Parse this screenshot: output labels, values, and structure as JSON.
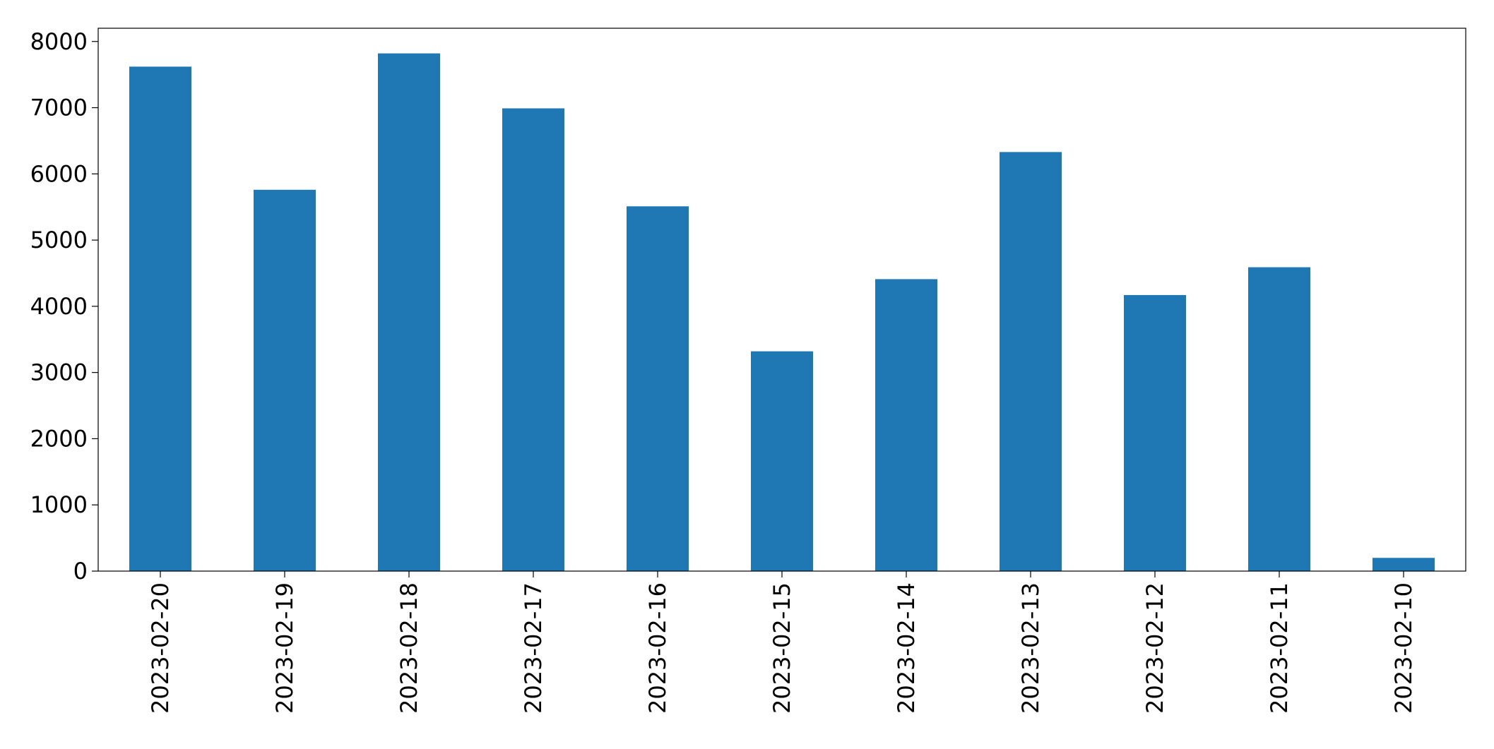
{
  "chart_data": {
    "type": "bar",
    "categories": [
      "2023-02-20",
      "2023-02-19",
      "2023-02-18",
      "2023-02-17",
      "2023-02-16",
      "2023-02-15",
      "2023-02-14",
      "2023-02-13",
      "2023-02-12",
      "2023-02-11",
      "2023-02-10"
    ],
    "values": [
      7620,
      5760,
      7820,
      6990,
      5510,
      3320,
      4410,
      6330,
      4170,
      4590,
      200
    ],
    "color": "#1f77b4",
    "ylim": [
      0,
      8200
    ],
    "yticks": [
      0,
      1000,
      2000,
      3000,
      4000,
      5000,
      6000,
      7000,
      8000
    ],
    "grid": false
  }
}
